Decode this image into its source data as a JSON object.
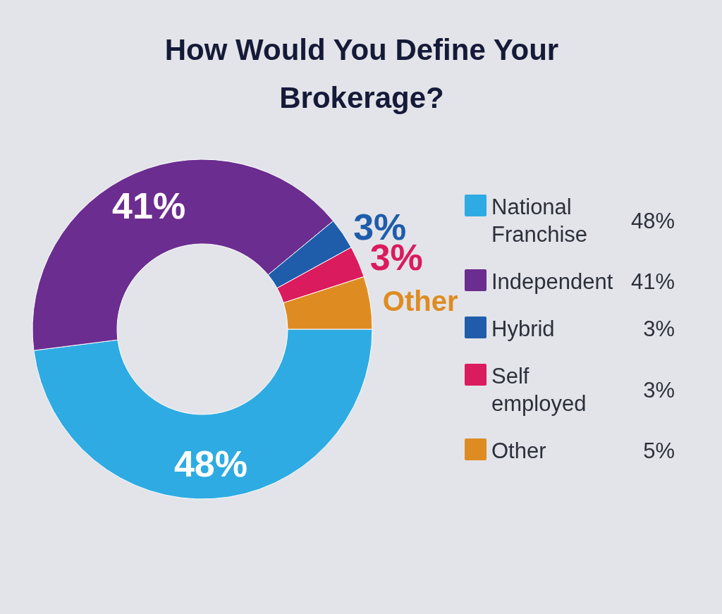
{
  "chart_data": {
    "type": "donut",
    "title": "How Would You Define Your Brokerage?",
    "categories": [
      "National Franchise",
      "Independent",
      "Hybrid",
      "Self employed",
      "Other"
    ],
    "values": [
      48,
      41,
      3,
      3,
      5
    ],
    "colors": [
      "#2eabe2",
      "#6b2d8f",
      "#1f5dab",
      "#da1b5d",
      "#de8c22"
    ],
    "value_labels": [
      "48%",
      "41%",
      "3%",
      "3%",
      "5%"
    ],
    "annotations": [
      {
        "text": "Other",
        "x": "Other"
      }
    ],
    "legend": "right"
  }
}
